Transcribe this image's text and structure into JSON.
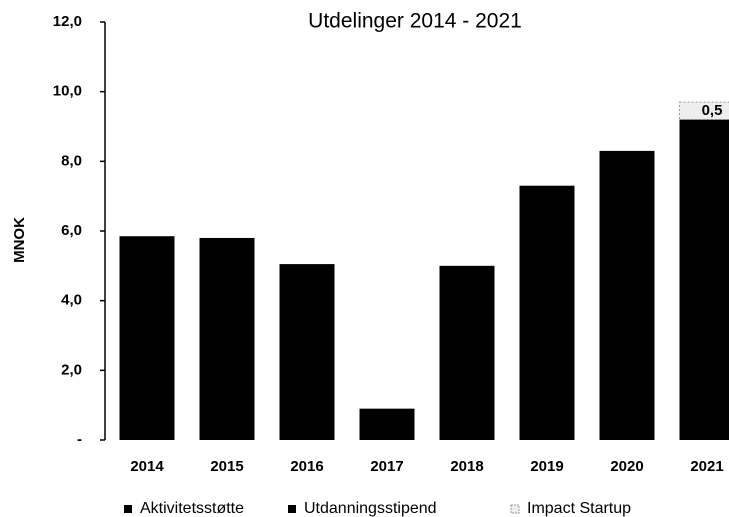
{
  "chart_data": {
    "type": "stacked_bar",
    "title": "Utdelinger 2014 - 2021",
    "y_label": "MNOK",
    "categories": [
      "2014",
      "2015",
      "2016",
      "2017",
      "2018",
      "2019",
      "2020",
      "2021"
    ],
    "series": [
      {
        "name": "Aktivitetsstøtte",
        "color": "#000000",
        "values": [
          5.85,
          5.8,
          5.05,
          0.9,
          5.0,
          7.3,
          8.3,
          9.2
        ]
      },
      {
        "name": "Utdanningsstipend",
        "color": "#000000",
        "values": [
          null,
          null,
          null,
          null,
          null,
          null,
          null,
          null
        ]
      },
      {
        "name": "Impact Startup",
        "color": "#eeeeee",
        "values": [
          null,
          null,
          null,
          null,
          null,
          null,
          null,
          0.5
        ],
        "value_labels": [
          null,
          null,
          null,
          null,
          null,
          null,
          null,
          "0,5"
        ]
      }
    ],
    "ylim": [
      0,
      12
    ],
    "yticks": [
      {
        "value": 0,
        "label": "-"
      },
      {
        "value": 2,
        "label": "2,0"
      },
      {
        "value": 4,
        "label": "4,0"
      },
      {
        "value": 6,
        "label": "6,0"
      },
      {
        "value": 8,
        "label": "8,0"
      },
      {
        "value": 10,
        "label": "10,0"
      },
      {
        "value": 12,
        "label": "12,0"
      }
    ],
    "grid": false
  }
}
